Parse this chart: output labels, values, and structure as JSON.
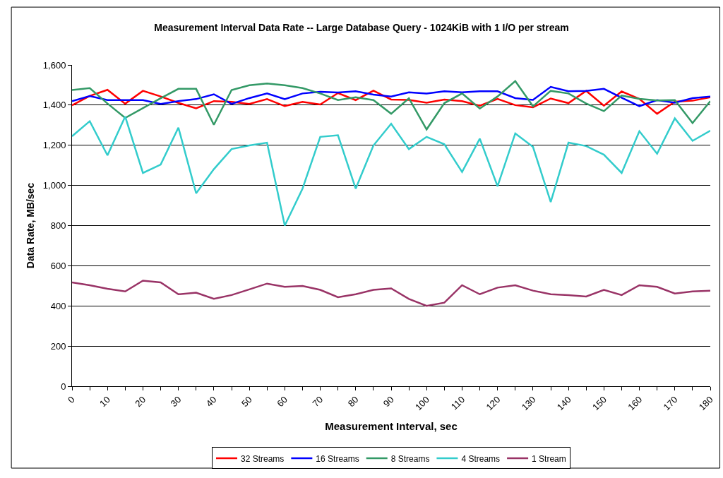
{
  "chart_data": {
    "type": "line",
    "title": "Measurement Interval Data Rate -- Large Database Query - 1024KiB with 1 I/O per stream",
    "xlabel": "Measurement Interval, sec",
    "ylabel": "Data Rate, MB/sec",
    "x": [
      0,
      5,
      10,
      15,
      20,
      25,
      30,
      35,
      40,
      45,
      50,
      55,
      60,
      65,
      70,
      75,
      80,
      85,
      90,
      95,
      100,
      105,
      110,
      115,
      120,
      125,
      130,
      135,
      140,
      145,
      150,
      155,
      160,
      165,
      170,
      175,
      180
    ],
    "xlim": [
      0,
      180
    ],
    "xticks": [
      0,
      {
        "value": 5,
        "label": null
      },
      10,
      {
        "value": 15,
        "label": null
      },
      20,
      {
        "value": 25,
        "label": null
      },
      30,
      {
        "value": 35,
        "label": null
      },
      40,
      {
        "value": 45,
        "label": null
      },
      50,
      {
        "value": 55,
        "label": null
      },
      60,
      {
        "value": 65,
        "label": null
      },
      70,
      {
        "value": 75,
        "label": null
      },
      80,
      {
        "value": 85,
        "label": null
      },
      90,
      {
        "value": 95,
        "label": null
      },
      100,
      {
        "value": 105,
        "label": null
      },
      110,
      {
        "value": 115,
        "label": null
      },
      120,
      {
        "value": 125,
        "label": null
      },
      130,
      {
        "value": 135,
        "label": null
      },
      140,
      {
        "value": 145,
        "label": null
      },
      150,
      {
        "value": 155,
        "label": null
      },
      160,
      {
        "value": 165,
        "label": null
      },
      170,
      {
        "value": 175,
        "label": null
      },
      180
    ],
    "ylim": [
      0,
      1600
    ],
    "yticks": [
      {
        "value": 0,
        "label": "0"
      },
      {
        "value": 200,
        "label": "200"
      },
      {
        "value": 400,
        "label": "400"
      },
      {
        "value": 600,
        "label": "600"
      },
      {
        "value": 800,
        "label": "800"
      },
      {
        "value": 1000,
        "label": "1,000"
      },
      {
        "value": 1200,
        "label": "1,200"
      },
      {
        "value": 1400,
        "label": "1,400"
      },
      {
        "value": 1600,
        "label": "1,600"
      }
    ],
    "grid": "y",
    "legend": "bottom",
    "marker": "none",
    "line_style": "solid",
    "series": [
      {
        "name": "32 Streams",
        "color": "#ff0000",
        "values": [
          1399,
          1446,
          1476,
          1407,
          1471,
          1443,
          1411,
          1384,
          1420,
          1416,
          1406,
          1430,
          1395,
          1416,
          1403,
          1460,
          1425,
          1472,
          1428,
          1426,
          1412,
          1428,
          1420,
          1397,
          1431,
          1400,
          1389,
          1433,
          1410,
          1471,
          1397,
          1468,
          1431,
          1357,
          1417,
          1422,
          1439
        ]
      },
      {
        "name": "16 Streams",
        "color": "#0000ff",
        "values": [
          1420,
          1445,
          1425,
          1425,
          1425,
          1406,
          1420,
          1430,
          1454,
          1406,
          1435,
          1458,
          1430,
          1458,
          1466,
          1463,
          1469,
          1452,
          1443,
          1464,
          1458,
          1469,
          1464,
          1469,
          1469,
          1435,
          1426,
          1491,
          1469,
          1471,
          1481,
          1437,
          1395,
          1425,
          1412,
          1435,
          1443
        ]
      },
      {
        "name": "8 Streams",
        "color": "#339966",
        "values": [
          1475,
          1485,
          1408,
          1336,
          1385,
          1434,
          1481,
          1481,
          1302,
          1475,
          1499,
          1508,
          1499,
          1485,
          1458,
          1425,
          1439,
          1425,
          1357,
          1434,
          1279,
          1410,
          1458,
          1383,
          1443,
          1520,
          1394,
          1471,
          1458,
          1408,
          1370,
          1448,
          1431,
          1423,
          1425,
          1311,
          1420
        ]
      },
      {
        "name": "4 Streams",
        "color": "#33cccc",
        "values": [
          1245,
          1320,
          1150,
          1343,
          1062,
          1104,
          1288,
          961,
          1081,
          1181,
          1199,
          1213,
          800,
          984,
          1242,
          1250,
          984,
          1199,
          1307,
          1181,
          1242,
          1205,
          1067,
          1233,
          996,
          1259,
          1192,
          917,
          1213,
          1196,
          1153,
          1062,
          1270,
          1158,
          1334,
          1222,
          1273
        ]
      },
      {
        "name": "1 Stream",
        "color": "#993366",
        "values": [
          517,
          503,
          485,
          472,
          526,
          517,
          458,
          466,
          435,
          454,
          482,
          511,
          495,
          499,
          480,
          443,
          458,
          480,
          487,
          435,
          400,
          416,
          503,
          458,
          491,
          503,
          476,
          458,
          454,
          447,
          480,
          454,
          503,
          495,
          462,
          472,
          476
        ]
      }
    ]
  }
}
